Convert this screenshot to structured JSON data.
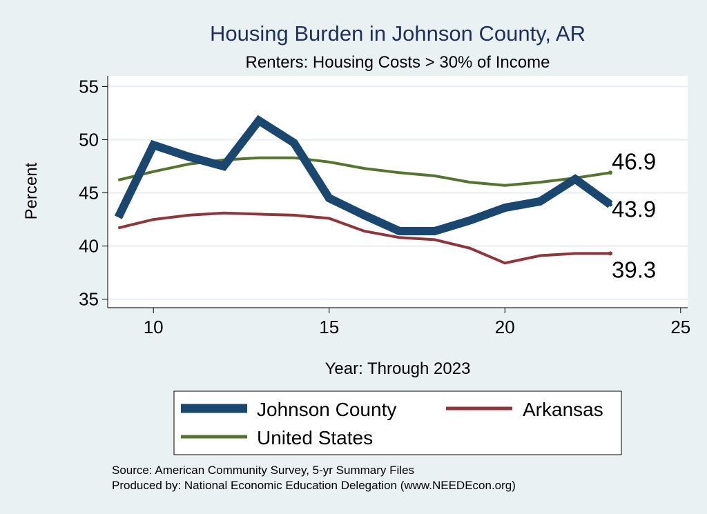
{
  "chart_data": {
    "type": "line",
    "title": "Housing Burden in Johnson County, AR",
    "subtitle": "Renters: Housing Costs > 30% of Income",
    "xlabel": "Year: Through 2023",
    "ylabel": "Percent",
    "xlim": [
      8.7,
      25.2
    ],
    "ylim": [
      34.2,
      56.0
    ],
    "xticks": [
      10,
      15,
      20,
      25
    ],
    "yticks": [
      35,
      40,
      45,
      50,
      55
    ],
    "grid": true,
    "series": [
      {
        "name": "Johnson County",
        "color": "#1a476f",
        "x": [
          9,
          10,
          11,
          12,
          13,
          14,
          15,
          16,
          17,
          18,
          19,
          20,
          21,
          22,
          23
        ],
        "values": [
          42.7,
          49.5,
          48.4,
          47.5,
          51.8,
          49.7,
          44.5,
          42.9,
          41.4,
          41.4,
          42.4,
          43.6,
          44.2,
          46.3,
          43.9
        ],
        "end_label": "43.9"
      },
      {
        "name": "Arkansas",
        "color": "#90353b",
        "x": [
          9,
          10,
          11,
          12,
          13,
          14,
          15,
          16,
          17,
          18,
          19,
          20,
          21,
          22,
          23
        ],
        "values": [
          41.7,
          42.5,
          42.9,
          43.1,
          43.0,
          42.9,
          42.6,
          41.4,
          40.8,
          40.6,
          39.8,
          38.4,
          39.1,
          39.3,
          39.3
        ],
        "end_label": "39.3"
      },
      {
        "name": "United States",
        "color": "#55752f",
        "x": [
          9,
          10,
          11,
          12,
          13,
          14,
          15,
          16,
          17,
          18,
          19,
          20,
          21,
          22,
          23
        ],
        "values": [
          46.2,
          47.0,
          47.7,
          48.1,
          48.3,
          48.3,
          47.9,
          47.3,
          46.9,
          46.6,
          46.0,
          45.7,
          46.0,
          46.4,
          46.9
        ],
        "end_label": "46.9"
      }
    ],
    "legend": {
      "placement": "bottom",
      "items": [
        "Johnson County",
        "Arkansas",
        "United States"
      ]
    },
    "source_lines": [
      "Source: American Community Survey, 5-yr Summary Files",
      "Produced by: National Economic Education Delegation (www.NEEDEcon.org)"
    ]
  }
}
